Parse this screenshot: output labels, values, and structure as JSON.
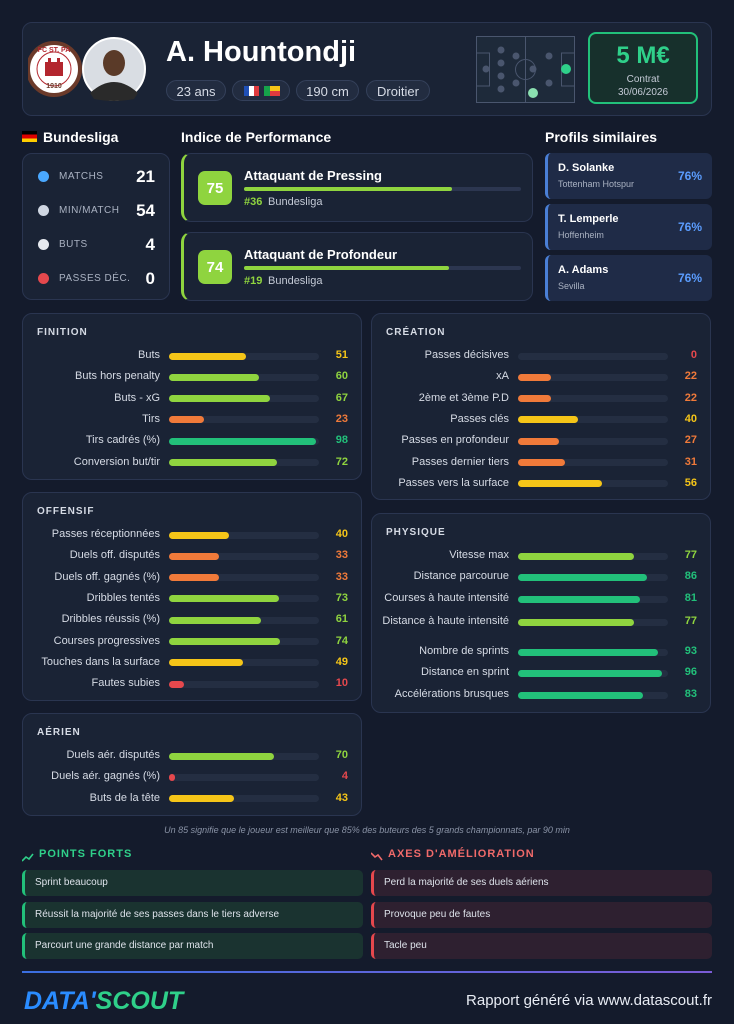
{
  "header": {
    "name": "A. Hountondji",
    "age": "23 ans",
    "height": "190 cm",
    "foot": "Droitier",
    "market_value": "5 M€",
    "contract_label": "Contrat",
    "contract_date": "30/06/2026",
    "club_badge_top": "FC ST. PA",
    "club_badge_year": "1910"
  },
  "league": {
    "name": "Bundesliga",
    "stats": [
      {
        "label": "MATCHS",
        "value": 21
      },
      {
        "label": "MIN/MATCH",
        "value": 54
      },
      {
        "label": "BUTS",
        "value": 4
      },
      {
        "label": "PASSES DÉC.",
        "value": 0
      }
    ]
  },
  "performance": {
    "title": "Indice de Performance",
    "items": [
      {
        "score": 75,
        "role": "Attaquant de Pressing",
        "rank": "#36",
        "league": "Bundesliga"
      },
      {
        "score": 74,
        "role": "Attaquant de Profondeur",
        "rank": "#19",
        "league": "Bundesliga"
      }
    ]
  },
  "similar": {
    "title": "Profils similaires",
    "profiles": [
      {
        "name": "D. Solanke",
        "club": "Tottenham Hotspur",
        "similarity": "76%"
      },
      {
        "name": "T. Lemperle",
        "club": "Hoffenheim",
        "similarity": "76%"
      },
      {
        "name": "A. Adams",
        "club": "Sevilla",
        "similarity": "76%"
      }
    ]
  },
  "panels": [
    {
      "title": "FINITION",
      "metrics": [
        {
          "label": "Buts",
          "value": 51
        },
        {
          "label": "Buts hors penalty",
          "value": 60
        },
        {
          "label": "Buts - xG",
          "value": 67
        },
        {
          "label": "Tirs",
          "value": 23
        },
        {
          "label": "Tirs cadrés (%)",
          "value": 98
        },
        {
          "label": "Conversion but/tir",
          "value": 72
        }
      ]
    },
    {
      "title": "OFFENSIF",
      "metrics": [
        {
          "label": "Passes réceptionnées",
          "value": 40
        },
        {
          "label": "Duels off. disputés",
          "value": 33
        },
        {
          "label": "Duels off. gagnés (%)",
          "value": 33
        },
        {
          "label": "Dribbles tentés",
          "value": 73
        },
        {
          "label": "Dribbles réussis (%)",
          "value": 61
        },
        {
          "label": "Courses progressives",
          "value": 74
        },
        {
          "label": "Touches dans la surface",
          "value": 49
        },
        {
          "label": "Fautes subies",
          "value": 10
        }
      ]
    },
    {
      "title": "AÉRIEN",
      "metrics": [
        {
          "label": "Duels aér. disputés",
          "value": 70
        },
        {
          "label": "Duels aér. gagnés (%)",
          "value": 4
        },
        {
          "label": "Buts de la tête",
          "value": 43
        }
      ]
    },
    {
      "title": "CRÉATION",
      "metrics": [
        {
          "label": "Passes décisives",
          "value": 0
        },
        {
          "label": "xA",
          "value": 22
        },
        {
          "label": "2ème et 3ème P.D",
          "value": 22
        },
        {
          "label": "Passes clés",
          "value": 40
        },
        {
          "label": "Passes en profondeur",
          "value": 27
        },
        {
          "label": "Passes dernier tiers",
          "value": 31
        },
        {
          "label": "Passes vers la surface",
          "value": 56
        }
      ]
    },
    {
      "title": "PHYSIQUE",
      "metrics": [
        {
          "label": "Vitesse max",
          "value": 77
        },
        {
          "label": "Distance parcourue",
          "value": 86
        },
        {
          "label": "Courses à haute intensité",
          "value": 81
        },
        {
          "label": "Distance à haute intensité",
          "value": 77
        },
        {
          "label": "Nombre de sprints",
          "value": 93
        },
        {
          "label": "Distance en sprint",
          "value": 96
        },
        {
          "label": "Accélérations brusques",
          "value": 83
        }
      ]
    }
  ],
  "footnote": "Un 85 signifie que le joueur est meilleur que 85% des buteurs des 5 grands championnats, par 90 min",
  "strengths": {
    "title": "POINTS FORTS",
    "items": [
      "Sprint beaucoup",
      "Réussit la majorité de ses passes dans le tiers adverse",
      "Parcourt une grande distance par match"
    ]
  },
  "weaknesses": {
    "title": "AXES D'AMÉLIORATION",
    "items": [
      "Perd la majorité de ses duels aériens",
      "Provoque peu de fautes",
      "Tacle peu"
    ]
  },
  "footer": {
    "brand_left": "DATA'",
    "brand_right": "SCOUT",
    "text": "Rapport généré via www.datascout.fr"
  }
}
